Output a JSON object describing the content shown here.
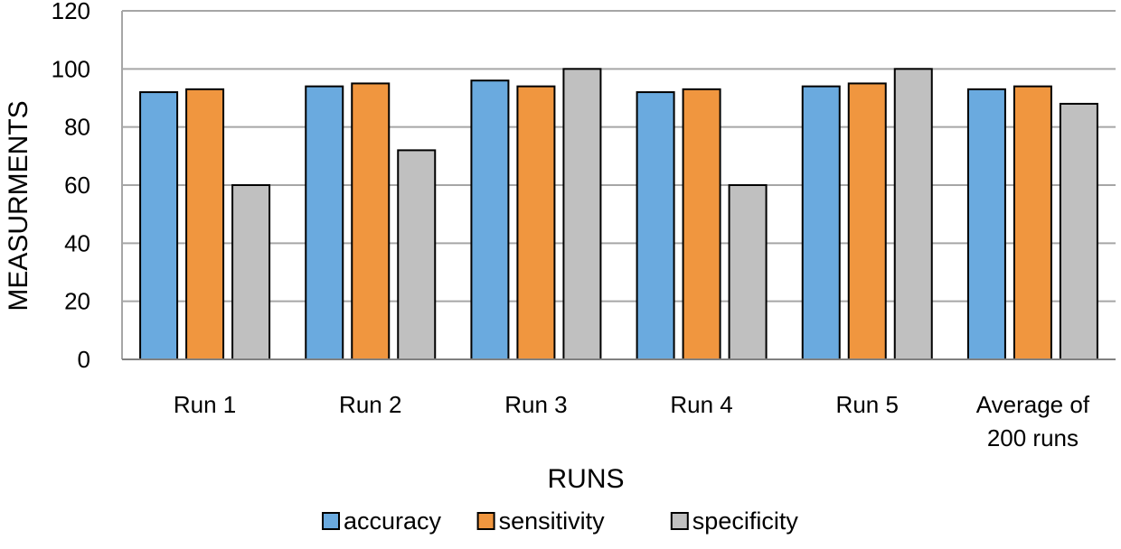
{
  "chart_data": {
    "type": "bar",
    "title": "",
    "xlabel": "RUNS",
    "ylabel": "MEASURMENTS",
    "ylim": [
      0,
      120
    ],
    "yticks": [
      0,
      20,
      40,
      60,
      80,
      100,
      120
    ],
    "grid": true,
    "legend_position": "bottom",
    "categories": [
      [
        "Run 1"
      ],
      [
        "Run 2"
      ],
      [
        "Run 3"
      ],
      [
        "Run 4"
      ],
      [
        "Run 5"
      ],
      [
        "Average of",
        "200 runs"
      ]
    ],
    "series": [
      {
        "name": "accuracy",
        "color": "#6aaadf",
        "values": [
          92,
          94,
          96,
          92,
          94,
          93
        ]
      },
      {
        "name": "sensitivity",
        "color": "#f0963f",
        "values": [
          93,
          95,
          94,
          93,
          95,
          94
        ]
      },
      {
        "name": "specificity",
        "color": "#c0c0c0",
        "values": [
          60,
          72,
          100,
          60,
          100,
          88
        ]
      }
    ]
  }
}
